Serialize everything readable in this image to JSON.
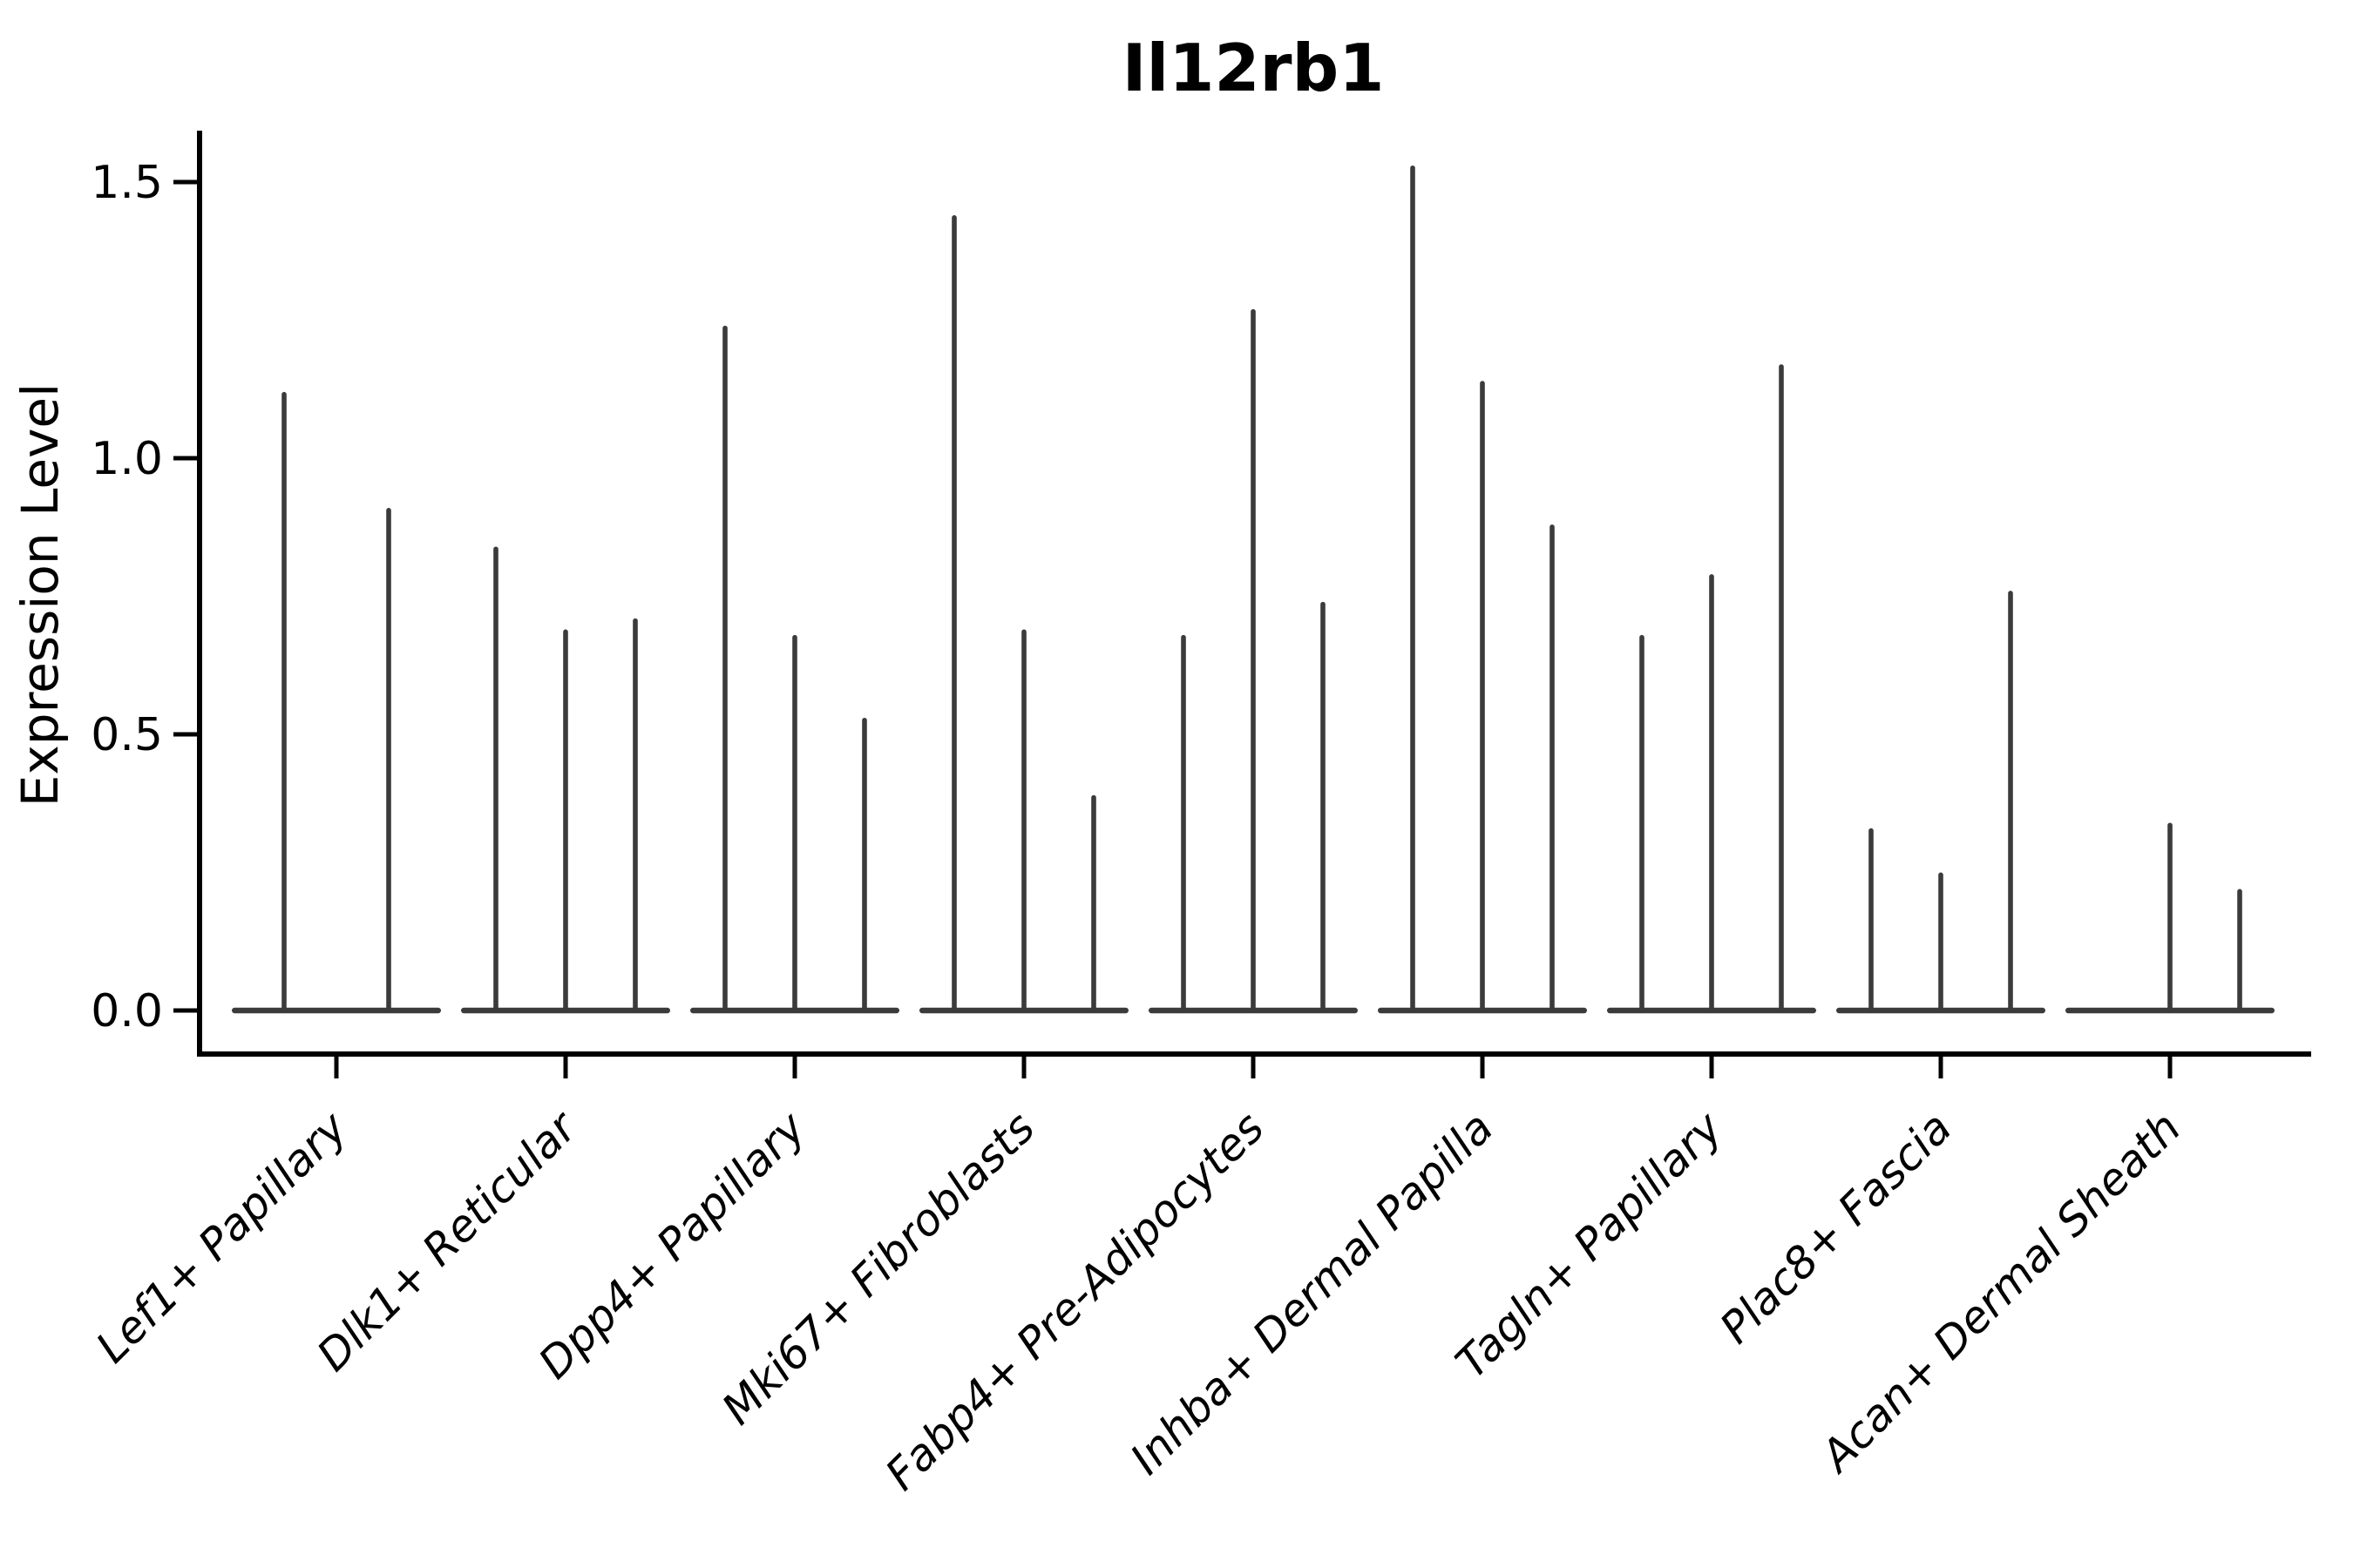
{
  "title": "Il12rb1",
  "colors": {
    "violin": "#3b3b3b",
    "axis": "#000000",
    "text": "#000000",
    "background": "#ffffff"
  },
  "chart_data": {
    "type": "violin",
    "title": "Il12rb1",
    "xlabel": "",
    "ylabel": "Expression Level",
    "yticks": [
      0.0,
      0.5,
      1.0,
      1.5
    ],
    "ytick_labels": [
      "0.0",
      "0.5",
      "1.0",
      "1.5"
    ],
    "ylim": [
      -0.08,
      1.59
    ],
    "grid": false,
    "legend": null,
    "categories": [
      "Lef1+ Papillary",
      "Dlk1+ Reticular",
      "Dpp4+ Papillary",
      "Mki67+ Fibroblasts",
      "Fabp4+ Pre-Adipocytes",
      "Inhba+ Dermal Papilla",
      "Tagln+ Papillary",
      "Plac8+ Fascia",
      "Acan+ Dermal Sheath"
    ],
    "groups": [
      {
        "category": "Lef1+ Papillary",
        "violin_max_expression": [
          1.12,
          0.91
        ]
      },
      {
        "category": "Dlk1+ Reticular",
        "violin_max_expression": [
          0.84,
          0.69,
          0.71
        ]
      },
      {
        "category": "Dpp4+ Papillary",
        "violin_max_expression": [
          1.24,
          0.68,
          0.53
        ]
      },
      {
        "category": "Mki67+ Fibroblasts",
        "violin_max_expression": [
          1.44,
          0.69,
          0.39
        ]
      },
      {
        "category": "Fabp4+ Pre-Adipocytes",
        "violin_max_expression": [
          0.68,
          1.27,
          0.74
        ]
      },
      {
        "category": "Inhba+ Dermal Papilla",
        "violin_max_expression": [
          1.53,
          1.14,
          0.88
        ]
      },
      {
        "category": "Tagln+ Papillary",
        "violin_max_expression": [
          0.68,
          0.79,
          1.17
        ]
      },
      {
        "category": "Plac8+ Fascia",
        "violin_max_expression": [
          0.33,
          0.25,
          0.76
        ]
      },
      {
        "category": "Acan+ Dermal Sheath",
        "violin_max_expression": [
          0.0,
          0.34,
          0.22
        ]
      }
    ],
    "note": "Needle-thin violins: expression mass concentrated at 0 with a thin density spike up to each violin's maximum value."
  }
}
